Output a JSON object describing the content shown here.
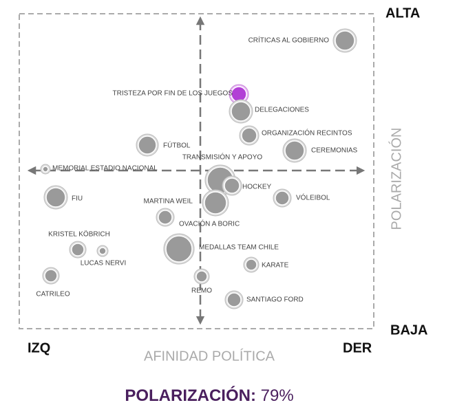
{
  "corners": {
    "top": "ALTA",
    "bottom": "BAJA",
    "left": "IZQ",
    "right": "DER"
  },
  "axis_titles": {
    "x": "AFINIDAD POLÍTICA",
    "y": "POLARIZACIÓN"
  },
  "nodes": [
    {
      "label": "CRÍTICAS AL GOBIERNO"
    },
    {
      "label": "TRISTEZA POR FIN DE LOS JUEGOS"
    },
    {
      "label": "DELEGACIONES"
    },
    {
      "label": "ORGANIZACIÓN RECINTOS"
    },
    {
      "label": "FÚTBOL"
    },
    {
      "label": "CEREMONIAS"
    },
    {
      "label": "TRANSMISIÓN Y APOYO"
    },
    {
      "label": "MEMORIAL ESTADIO NACIONAL"
    },
    {
      "label": "HOCKEY"
    },
    {
      "label": "FIU"
    },
    {
      "label": "VÓLEIBOL"
    },
    {
      "label": "MARTINA WEIL"
    },
    {
      "label": "OVACIÓN A BORIC"
    },
    {
      "label": "KRISTEL KÖBRICH"
    },
    {
      "label": "LUCAS NERVI"
    },
    {
      "label": "MEDALLAS TEAM CHILE"
    },
    {
      "label": "KARATE"
    },
    {
      "label": "CATRILEO"
    },
    {
      "label": "REMO"
    },
    {
      "label": "SANTIAGO FORD"
    }
  ],
  "footer": {
    "label": "POLARIZACIÓN:",
    "value": "79%"
  }
}
